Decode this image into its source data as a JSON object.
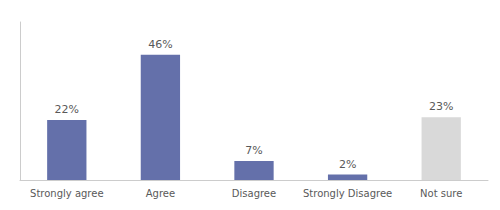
{
  "chart_data": {
    "type": "bar",
    "categories": [
      "Strongly agree",
      "Agree",
      "Disagree",
      "Strongly Disagree",
      "Not sure"
    ],
    "values": [
      22,
      46,
      7,
      2,
      23
    ],
    "value_labels": [
      "22%",
      "46%",
      "7%",
      "2%",
      "23%"
    ],
    "colors": [
      "#6470aa",
      "#6470aa",
      "#6470aa",
      "#6470aa",
      "#d9d9d9"
    ],
    "ylim": [
      0,
      58
    ],
    "data_labels": true,
    "tick_labels": "x",
    "grid": false
  }
}
